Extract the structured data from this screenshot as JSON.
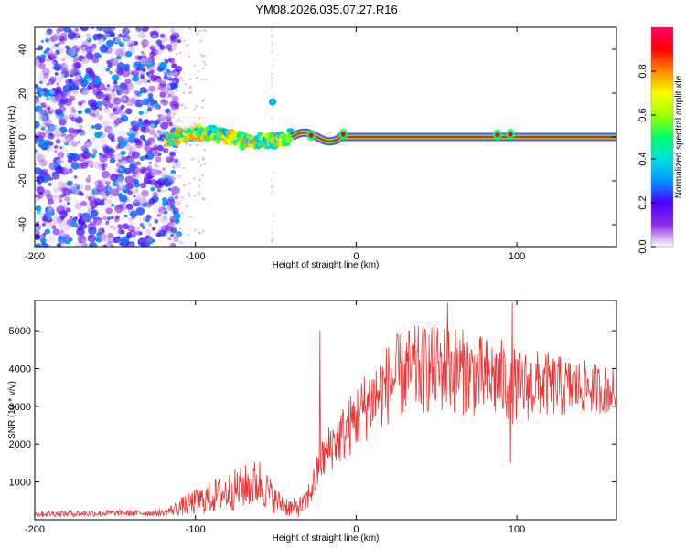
{
  "title": "YM08.2026.035.07.27.R16",
  "chart_data": [
    {
      "type": "heatmap",
      "title": "YM08.2026.035.07.27.R16",
      "xlabel": "Height of straight line (km)",
      "ylabel": "Frequency (Hz)",
      "xlim": [
        -200,
        162
      ],
      "ylim": [
        -50,
        50
      ],
      "xticks": [
        -200,
        -100,
        0,
        100
      ],
      "yticks": [
        -40,
        -20,
        0,
        20,
        40
      ],
      "features": {
        "noise_region_x": [
          -200,
          -118
        ],
        "noisy_trace_x": [
          -118,
          -40
        ],
        "clean_trace_x": [
          -40,
          162
        ],
        "center_frequency": 0,
        "spot_near": {
          "x": -52,
          "y": 16
        }
      },
      "colorbar": {
        "label": "Normalized spectral amplitude",
        "range": [
          0,
          1
        ],
        "ticks": [
          0.0,
          0.2,
          0.4,
          0.6,
          0.8
        ],
        "tick_labels": [
          "0.0",
          "0.2",
          "0.4",
          "0.6",
          "0.8"
        ],
        "colors": [
          "#ffffff",
          "#8a2be2",
          "#4b00ff",
          "#0096ff",
          "#00e0e0",
          "#00ff66",
          "#a0ff00",
          "#ffff00",
          "#ff8800",
          "#ff0000",
          "#ff0066"
        ]
      }
    },
    {
      "type": "line",
      "xlabel": "Height of straight line (km)",
      "ylabel": "SNR (10 * v/v)",
      "xlim": [
        -200,
        162
      ],
      "ylim": [
        0,
        5800
      ],
      "xticks": [
        -200,
        -100,
        0,
        100
      ],
      "yticks": [
        1000,
        2000,
        3000,
        4000,
        5000
      ],
      "series": [
        {
          "name": "SNR",
          "color": "#ee3333",
          "envelope_x": [
            -200,
            -120,
            -115,
            -105,
            -90,
            -75,
            -60,
            -50,
            -40,
            -32,
            -25,
            -22,
            -15,
            -5,
            0,
            10,
            20,
            30,
            45,
            60,
            75,
            90,
            100,
            115,
            130,
            145,
            162
          ],
          "envelope_mean": [
            160,
            180,
            250,
            400,
            600,
            800,
            1000,
            500,
            300,
            400,
            1100,
            1500,
            2000,
            2400,
            2700,
            3200,
            3600,
            3900,
            4000,
            4000,
            3800,
            3700,
            3500,
            3600,
            3500,
            3500,
            3400
          ],
          "envelope_spread": [
            80,
            90,
            150,
            300,
            450,
            550,
            650,
            350,
            250,
            300,
            500,
            550,
            700,
            800,
            900,
            1000,
            1100,
            1200,
            1200,
            1200,
            1100,
            1100,
            1000,
            900,
            800,
            700,
            600
          ],
          "spikes": [
            {
              "x": -22.5,
              "y": 5000
            },
            {
              "x": 57,
              "y": 5750
            },
            {
              "x": 97,
              "y": 5750
            },
            {
              "x": 96,
              "y": 1500
            }
          ]
        }
      ]
    }
  ]
}
